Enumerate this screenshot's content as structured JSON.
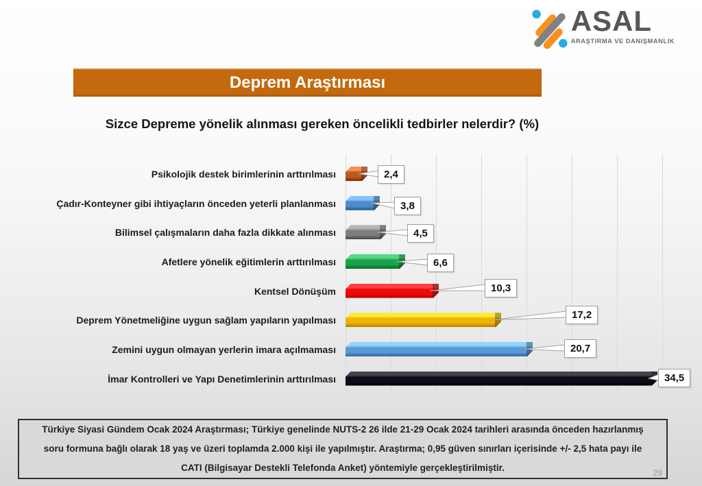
{
  "logo": {
    "name": "ASAL",
    "subtitle": "ARAŞTIRMA VE DANIŞMANLIK",
    "colors": {
      "orange": "#f6921e",
      "blue": "#29abe2",
      "gray": "#808285",
      "wordmark": "#56575b"
    }
  },
  "header": {
    "banner_title": "Deprem Araştırması",
    "banner_color": "#c4690e",
    "question": "Sizce Depreme yönelik alınması gereken öncelikli tedbirler nelerdir? (%)"
  },
  "chart_data": {
    "type": "bar",
    "orientation": "horizontal",
    "title": "Sizce Depreme yönelik alınması gereken öncelikli tedbirler nelerdir? (%)",
    "xlabel": "",
    "ylabel": "",
    "xlim": [
      0,
      40
    ],
    "gridline_step": 5,
    "grid": true,
    "legend": false,
    "value_format": "comma-decimal",
    "rows": [
      {
        "category": "Psikolojik destek birimlerinin arttırılması",
        "value": 2.4,
        "value_label": "2,4",
        "color": "#be5a1e"
      },
      {
        "category": "Çadır-Konteyner gibi ihtiyaçların önceden yeterli planlanması",
        "value": 3.8,
        "value_label": "3,8",
        "color": "#4e8bc8"
      },
      {
        "category": "Bilimsel çalışmaların daha fazla dikkate alınması",
        "value": 4.5,
        "value_label": "4,5",
        "color": "#7e7e7e"
      },
      {
        "category": "Afetlere yönelik eğitimlerin arttırılması",
        "value": 6.6,
        "value_label": "6,6",
        "color": "#1ca24c"
      },
      {
        "category": "Kentsel Dönüşüm",
        "value": 10.3,
        "value_label": "10,3",
        "color": "#ee0a0a"
      },
      {
        "category": "Deprem Yönetmeliğine uygun sağlam yapıların yapılması",
        "value": 17.2,
        "value_label": "17,2",
        "color": "#f0b400"
      },
      {
        "category": "Zemini uygun olmayan yerlerin imara açılmaması",
        "value": 20.7,
        "value_label": "20,7",
        "color": "#5b9bd5"
      },
      {
        "category": "İmar Kontrolleri ve Yapı Denetimlerinin arttırılması",
        "value": 34.5,
        "value_label": "34,5",
        "color": "#0d0d18"
      }
    ]
  },
  "footer": {
    "lines": [
      "Türkiye Siyasi Gündem Ocak 2024 Araştırması; Türkiye genelinde NUTS-2 26 ilde 21-29 Ocak 2024 tarihleri arasında önceden hazırlanmış",
      "soru formuna bağlı olarak 18 yaş ve üzeri toplamda 2.000 kişi ile yapılmıştır. Araştırma; 0,95 güven sınırları içerisinde +/- 2,5 hata payı ile",
      "CATI (Bilgisayar Destekli Telefonda Anket) yöntemiyle gerçekleştirilmiştir."
    ],
    "page_number": "29"
  }
}
